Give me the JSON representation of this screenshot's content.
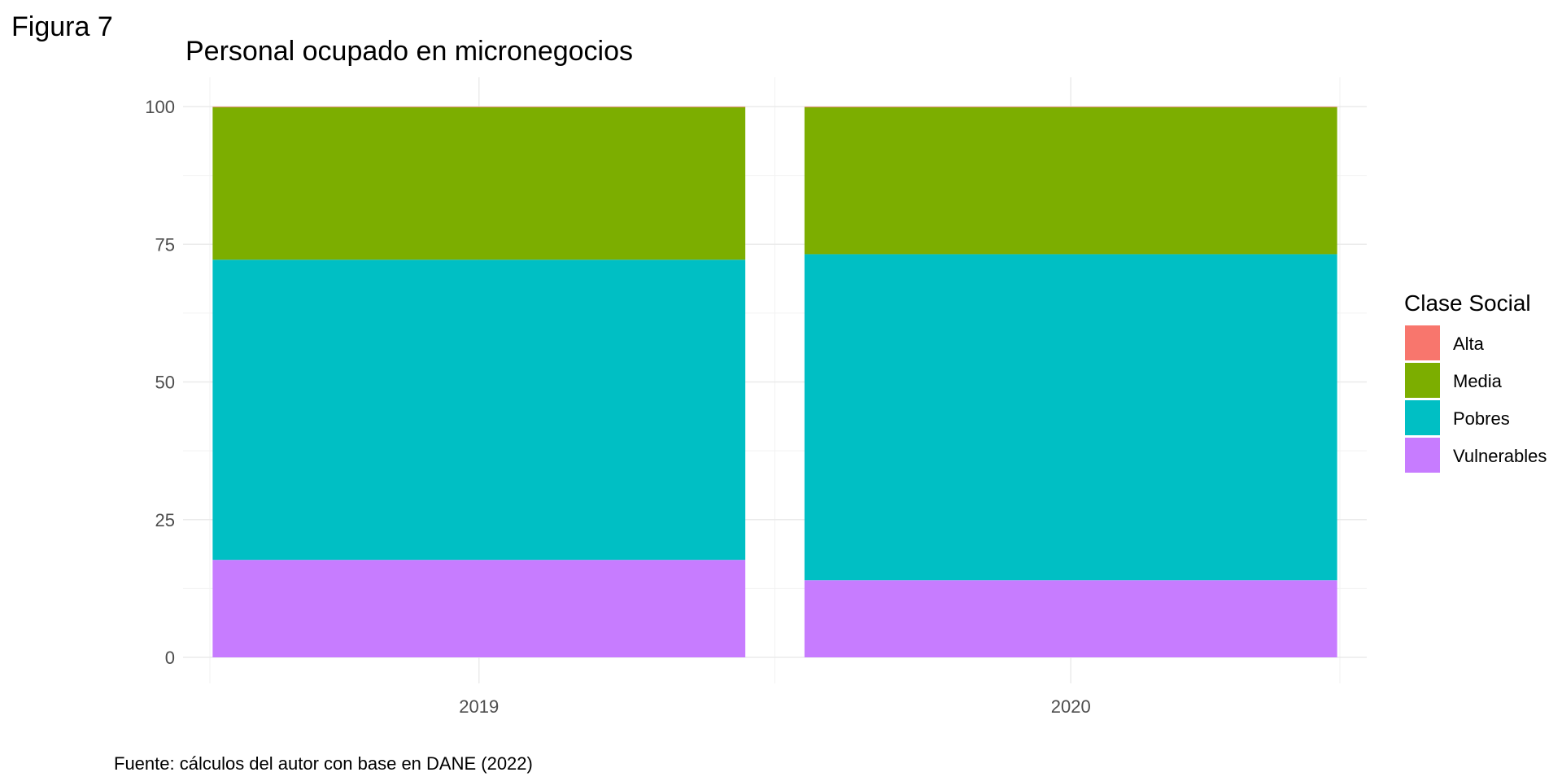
{
  "figure_label": "Figura 7",
  "source_note": "Fuente: cálculos del autor con base en DANE (2022)",
  "chart_data": {
    "type": "bar",
    "stacked": true,
    "title": "Personal ocupado en micronegocios",
    "xlabel": "",
    "ylabel": "",
    "categories": [
      "2019",
      "2020"
    ],
    "ylim": [
      0,
      100
    ],
    "yticks": [
      0,
      25,
      50,
      75,
      100
    ],
    "grid": true,
    "legend": {
      "title": "Clase Social",
      "position": "right"
    },
    "series": [
      {
        "name": "Vulnerables",
        "color": "#C77CFF",
        "values": [
          17.7,
          14.0
        ]
      },
      {
        "name": "Pobres",
        "color": "#00BFC4",
        "values": [
          54.5,
          59.2
        ]
      },
      {
        "name": "Media",
        "color": "#7CAE00",
        "values": [
          27.7,
          26.7
        ]
      },
      {
        "name": "Alta",
        "color": "#F8766D",
        "values": [
          0.1,
          0.1
        ]
      }
    ],
    "legend_order": [
      "Alta",
      "Media",
      "Pobres",
      "Vulnerables"
    ]
  }
}
